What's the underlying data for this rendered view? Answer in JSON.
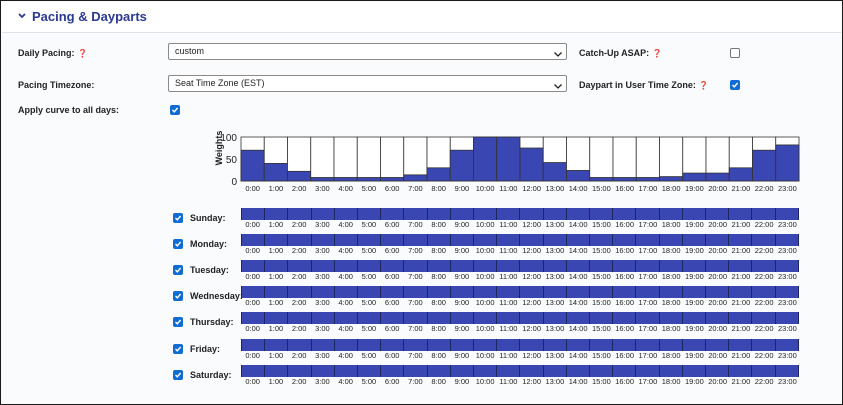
{
  "section": {
    "title": "Pacing & Dayparts"
  },
  "fields": {
    "daily_pacing": {
      "label": "Daily Pacing:",
      "value": "custom"
    },
    "pacing_timezone": {
      "label": "Pacing Timezone:",
      "value": "Seat Time Zone (EST)"
    },
    "catch_up_asap": {
      "label": "Catch-Up ASAP:",
      "checked": false
    },
    "daypart_user_tz": {
      "label": "Daypart in User Time Zone:",
      "checked": true
    },
    "apply_curve": {
      "label": "Apply curve to all days:",
      "checked": true
    }
  },
  "colors": {
    "accent": "#2b3990",
    "bar": "#3a46b1",
    "checkbox": "#0f6cd3"
  },
  "icons": {
    "collapse": "chevron-down-icon",
    "info": "info-icon",
    "dropdown": "caret-down-icon"
  },
  "hours": [
    "0:00",
    "1:00",
    "2:00",
    "3:00",
    "4:00",
    "5:00",
    "6:00",
    "7:00",
    "8:00",
    "9:00",
    "10:00",
    "11:00",
    "12:00",
    "13:00",
    "14:00",
    "15:00",
    "16:00",
    "17:00",
    "18:00",
    "19:00",
    "20:00",
    "21:00",
    "22:00",
    "23:00"
  ],
  "chart_data": {
    "type": "bar",
    "title": "",
    "xlabel": "",
    "ylabel": "Weights",
    "ylim": [
      0,
      100
    ],
    "yticks": [
      "0",
      "50",
      "100"
    ],
    "categories": [
      "0:00",
      "1:00",
      "2:00",
      "3:00",
      "4:00",
      "5:00",
      "6:00",
      "7:00",
      "8:00",
      "9:00",
      "10:00",
      "11:00",
      "12:00",
      "13:00",
      "14:00",
      "15:00",
      "16:00",
      "17:00",
      "18:00",
      "19:00",
      "20:00",
      "21:00",
      "22:00",
      "23:00"
    ],
    "values": [
      70,
      40,
      22,
      8,
      8,
      8,
      8,
      14,
      30,
      70,
      100,
      100,
      75,
      42,
      24,
      8,
      8,
      8,
      10,
      18,
      18,
      30,
      70,
      82
    ]
  },
  "days": [
    {
      "name": "Sunday:",
      "checked": true
    },
    {
      "name": "Monday:",
      "checked": true
    },
    {
      "name": "Tuesday:",
      "checked": true
    },
    {
      "name": "Wednesday:",
      "checked": true
    },
    {
      "name": "Thursday:",
      "checked": true
    },
    {
      "name": "Friday:",
      "checked": true
    },
    {
      "name": "Saturday:",
      "checked": true
    }
  ]
}
